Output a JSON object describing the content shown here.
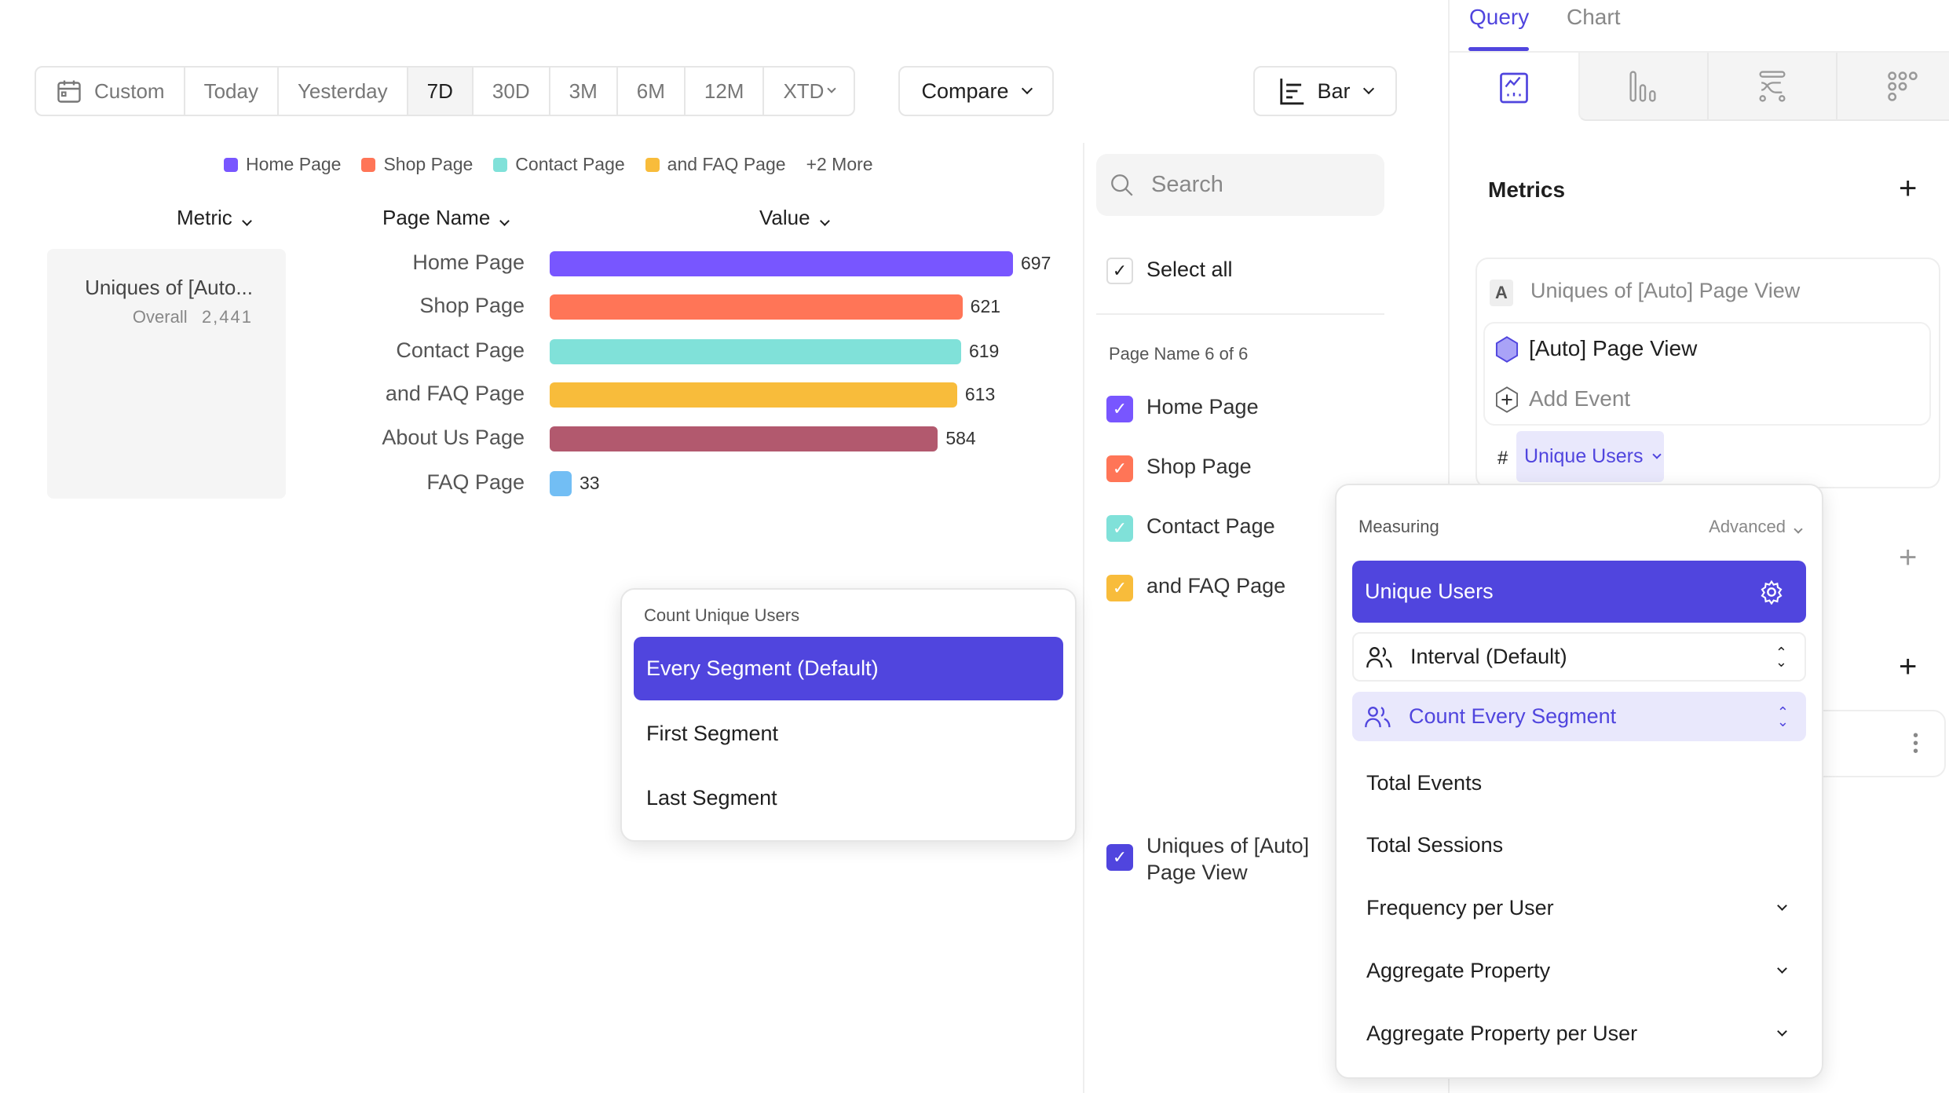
{
  "date_range": {
    "custom": "Custom",
    "options": [
      "Today",
      "Yesterday",
      "7D",
      "30D",
      "3M",
      "6M",
      "12M",
      "XTD"
    ],
    "active": "7D"
  },
  "compare_label": "Compare",
  "chart_type_label": "Bar",
  "legend": {
    "items": [
      {
        "label": "Home Page",
        "color": "#7856ff"
      },
      {
        "label": "Shop Page",
        "color": "#ff7557"
      },
      {
        "label": "Contact Page",
        "color": "#80e1d9"
      },
      {
        "label": "and FAQ Page",
        "color": "#f8bc3b"
      }
    ],
    "more": "+2 More"
  },
  "table_headers": {
    "metric": "Metric",
    "page_name": "Page Name",
    "value": "Value"
  },
  "metric_card": {
    "name": "Uniques of [Auto...",
    "overall_label": "Overall",
    "overall_value": "2,441"
  },
  "chart_data": {
    "type": "bar",
    "orientation": "horizontal",
    "categories": [
      "Home Page",
      "Shop Page",
      "Contact Page",
      "and FAQ Page",
      "About Us Page",
      "FAQ Page"
    ],
    "values": [
      697,
      621,
      619,
      613,
      584,
      33
    ],
    "colors": [
      "#7856ff",
      "#ff7557",
      "#80e1d9",
      "#f8bc3b",
      "#b2596e",
      "#72bef4"
    ]
  },
  "filter": {
    "search_placeholder": "Search",
    "select_all": "Select all",
    "group_label": "Page Name 6 of 6",
    "items": [
      {
        "label": "Home Page",
        "color": "#7856ff"
      },
      {
        "label": "Shop Page",
        "color": "#ff7557"
      },
      {
        "label": "Contact Page",
        "color": "#80e1d9"
      },
      {
        "label": "and FAQ Page",
        "color": "#f8bc3b"
      }
    ],
    "metric_item": {
      "line1": "Uniques of [Auto]",
      "line2": "Page View",
      "color": "#5045de"
    }
  },
  "right_panel": {
    "tabs": [
      "Query",
      "Chart"
    ],
    "active_tab": "Query",
    "metrics_title": "Metrics",
    "metric": {
      "letter": "A",
      "title": "Uniques of [Auto] Page View",
      "event": "[Auto] Page View",
      "add_event": "Add Event",
      "measure_prefix": "#",
      "measure": "Unique Users"
    }
  },
  "measuring_popup": {
    "title": "Measuring",
    "advanced": "Advanced",
    "selected": "Unique Users",
    "interval": "Interval (Default)",
    "count_mode": "Count Every Segment",
    "items": [
      "Total Events",
      "Total Sessions"
    ],
    "expandable": [
      "Frequency per User",
      "Aggregate Property",
      "Aggregate Property per User"
    ]
  },
  "count_popup": {
    "title": "Count Unique Users",
    "options": [
      "Every Segment (Default)",
      "First Segment",
      "Last Segment"
    ],
    "selected": "Every Segment (Default)"
  },
  "accent": "#5045de"
}
